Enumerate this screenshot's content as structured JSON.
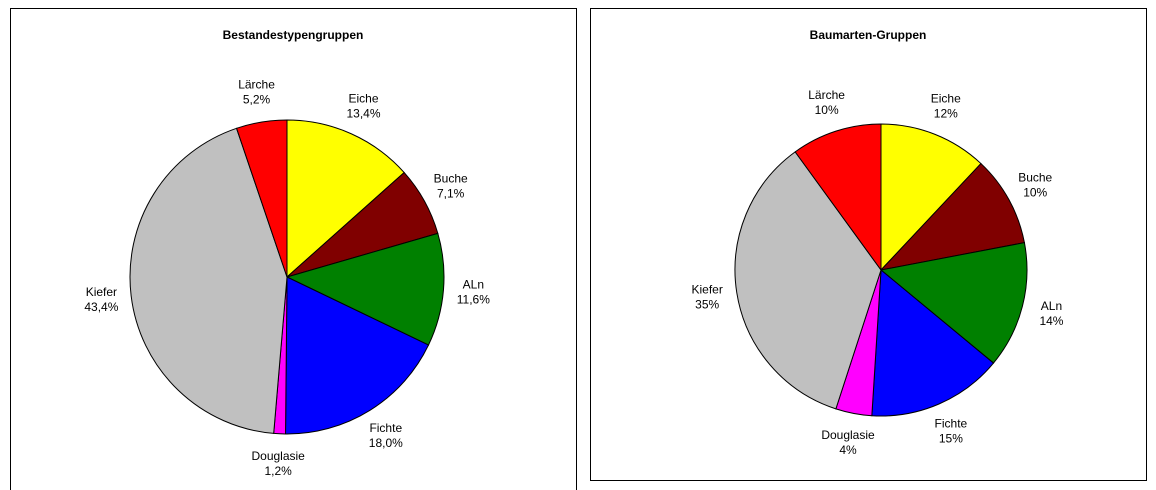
{
  "chart_data": [
    {
      "type": "pie",
      "title": "Bestandestypengruppen",
      "categories": [
        "Eiche",
        "Buche",
        "ALn",
        "Fichte",
        "Douglasie",
        "Kiefer",
        "Lärche"
      ],
      "values": [
        13.4,
        7.1,
        11.6,
        18.0,
        1.2,
        43.4,
        5.2
      ],
      "value_labels": [
        "13,4%",
        "7,1%",
        "11,6%",
        "18,0%",
        "1,2%",
        "43,4%",
        "5,2%"
      ],
      "colors": [
        "#ffff00",
        "#800000",
        "#008000",
        "#0000ff",
        "#ff00ff",
        "#c0c0c0",
        "#ff0000"
      ]
    },
    {
      "type": "pie",
      "title": "Baumarten-Gruppen",
      "categories": [
        "Eiche",
        "Buche",
        "ALn",
        "Fichte",
        "Douglasie",
        "Kiefer",
        "Lärche"
      ],
      "values": [
        12,
        10,
        14,
        15,
        4,
        35,
        10
      ],
      "value_labels": [
        "12%",
        "10%",
        "14%",
        "15%",
        "4%",
        "35%",
        "10%"
      ],
      "colors": [
        "#ffff00",
        "#800000",
        "#008000",
        "#0000ff",
        "#ff00ff",
        "#c0c0c0",
        "#ff0000"
      ]
    }
  ]
}
